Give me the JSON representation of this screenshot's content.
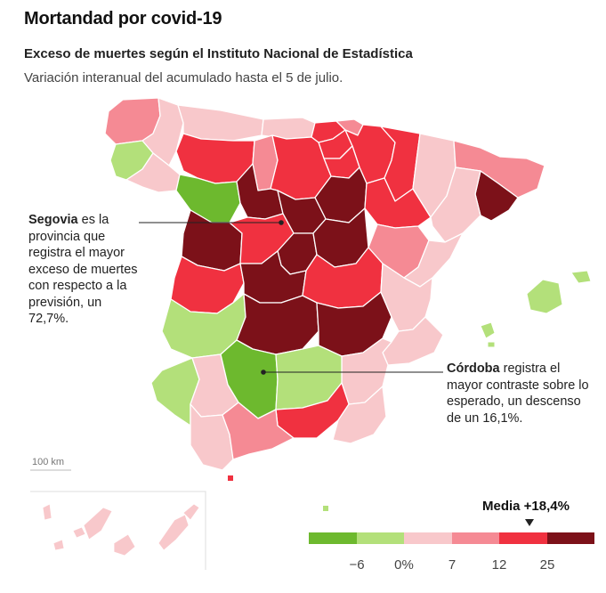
{
  "header": {
    "title": "Mortandad por covid-19",
    "subtitle": "Exceso de muertes según el Instituto Nacional de Estadística",
    "description": "Variación interanual del acumulado hasta el 5 de julio."
  },
  "annotations": {
    "segovia": {
      "name": "Segovia",
      "text": " es la provincia que registra el mayor exceso de muertes con respecto a la previsión, un 72,7%."
    },
    "cordoba": {
      "name": "Córdoba",
      "text": " registra el mayor contraste sobre lo esperado, un descenso de un 16,1%."
    }
  },
  "scale_bar": {
    "label": "100 km"
  },
  "legend": {
    "media_label": "Media +18,4%",
    "media_value": 18.4,
    "ticks": [
      "−6",
      "0%",
      "7",
      "12",
      "25"
    ],
    "colors": [
      "#6db92e",
      "#b3e07a",
      "#f8c8cb",
      "#f58a94",
      "#f03140",
      "#7c1119"
    ]
  },
  "colors": {
    "dark_red": "#7c1119",
    "red": "#f03140",
    "pink": "#f58a94",
    "light_pink": "#f8c8cb",
    "light_green": "#b3e07a",
    "green": "#6db92e",
    "border": "#ffffff"
  }
}
